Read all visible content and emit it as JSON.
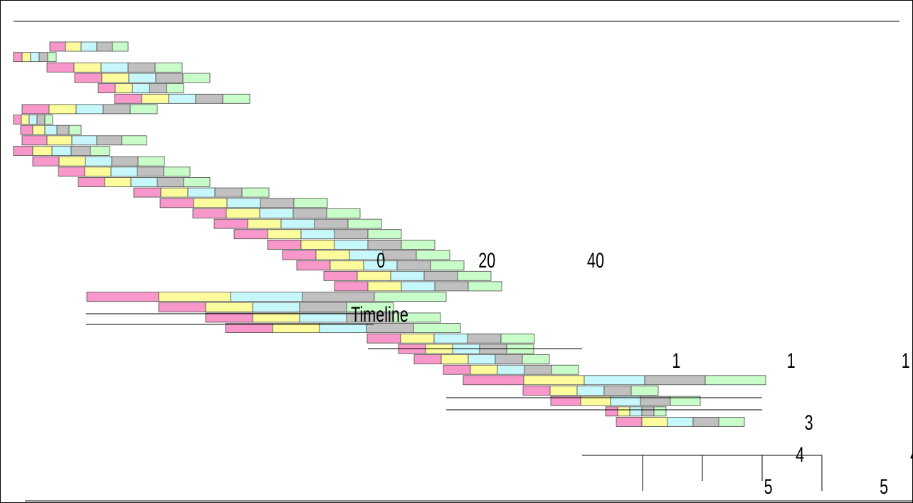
{
  "chart_data": {
    "type": "bar",
    "subtype": "stacked-gantt-timeline",
    "title": "",
    "colors": [
      "#f897c9",
      "#fdfc9d",
      "#c6f8fb",
      "#c0c0c0",
      "#c8fcc8"
    ],
    "labels": {
      "t0": "0",
      "t20": "20",
      "t40": "40",
      "timeline": "Timeline",
      "one": "1",
      "three": "3",
      "four": "4",
      "five": "5"
    },
    "rows": [
      {
        "start": 51,
        "segs": [
          22,
          22,
          22,
          22,
          22
        ]
      },
      {
        "start": 0,
        "segs": [
          12,
          12,
          12,
          12,
          12
        ]
      },
      {
        "start": 47,
        "segs": [
          38,
          38,
          38,
          38,
          38
        ]
      },
      {
        "start": 86,
        "segs": [
          38,
          38,
          38,
          38,
          38
        ]
      },
      {
        "start": 119,
        "segs": [
          24,
          24,
          24,
          24,
          24
        ]
      },
      {
        "start": 142,
        "segs": [
          38,
          38,
          38,
          38,
          38
        ]
      },
      {
        "start": 12,
        "segs": [
          38,
          38,
          38,
          38,
          38
        ]
      },
      {
        "start": 0,
        "segs": [
          11,
          11,
          11,
          11,
          11
        ]
      },
      {
        "start": 10,
        "segs": [
          17,
          17,
          17,
          17,
          17
        ]
      },
      {
        "start": 12,
        "segs": [
          35,
          35,
          35,
          35,
          35
        ]
      },
      {
        "start": 0,
        "segs": [
          27,
          27,
          27,
          27,
          27
        ]
      },
      {
        "start": 27,
        "segs": [
          37,
          37,
          37,
          37,
          37
        ]
      },
      {
        "start": 63,
        "segs": [
          37,
          37,
          37,
          37,
          37
        ]
      },
      {
        "start": 91,
        "segs": [
          37,
          37,
          37,
          37,
          37
        ]
      },
      {
        "start": 169,
        "segs": [
          38,
          38,
          38,
          38,
          38
        ]
      },
      {
        "start": 206,
        "segs": [
          47,
          47,
          47,
          47,
          47
        ]
      },
      {
        "start": 252,
        "segs": [
          47,
          47,
          47,
          47,
          47
        ]
      },
      {
        "start": 282,
        "segs": [
          47,
          47,
          47,
          47,
          47
        ]
      },
      {
        "start": 310,
        "segs": [
          47,
          47,
          47,
          47,
          47
        ]
      },
      {
        "start": 357,
        "segs": [
          47,
          47,
          47,
          47,
          47
        ]
      },
      {
        "start": 378,
        "segs": [
          47,
          47,
          47,
          47,
          47
        ]
      },
      {
        "start": 398,
        "segs": [
          47,
          47,
          47,
          47,
          47
        ]
      },
      {
        "start": 436,
        "segs": [
          47,
          47,
          47,
          47,
          47
        ]
      },
      {
        "start": 451,
        "segs": [
          47,
          47,
          47,
          47,
          47
        ]
      },
      {
        "start": 103,
        "segs": [
          101,
          101,
          101,
          101,
          101
        ]
      },
      {
        "start": 204,
        "segs": [
          66,
          66,
          66,
          66,
          66
        ]
      },
      {
        "start": 270,
        "segs": [
          66,
          66,
          66,
          66,
          66
        ]
      },
      {
        "start": 298,
        "segs": [
          66,
          66,
          66,
          66,
          66
        ]
      },
      {
        "start": 497,
        "segs": [
          47,
          47,
          47,
          47,
          47
        ]
      },
      {
        "start": 541,
        "segs": [
          38,
          38,
          38,
          38,
          38
        ]
      },
      {
        "start": 563,
        "segs": [
          38,
          38,
          38,
          38,
          38
        ]
      },
      {
        "start": 604,
        "segs": [
          38,
          38,
          38,
          38,
          38
        ]
      },
      {
        "start": 632,
        "segs": [
          85,
          85,
          85,
          85,
          85
        ]
      },
      {
        "start": 716,
        "segs": [
          38,
          38,
          38,
          38,
          38
        ]
      },
      {
        "start": 755,
        "segs": [
          42,
          42,
          42,
          42,
          42
        ]
      },
      {
        "start": 832,
        "segs": [
          17,
          17,
          17,
          17,
          17
        ]
      },
      {
        "start": 847,
        "segs": [
          36,
          36,
          36,
          36,
          36
        ]
      }
    ]
  }
}
